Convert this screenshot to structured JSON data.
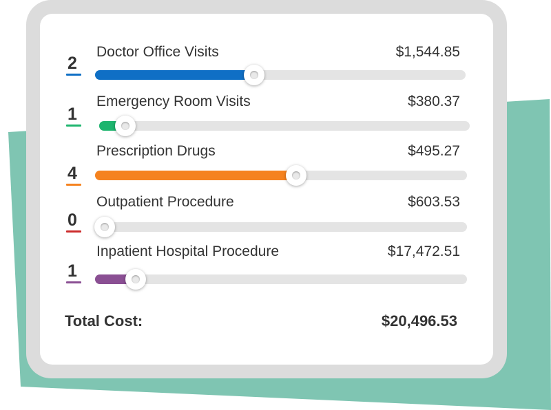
{
  "colors": {
    "background_shape": "#7fc5b2",
    "background_shape_shadow": "#6aa392",
    "frame": "#dcdcdc",
    "card": "#ffffff",
    "track": "#e4e4e4",
    "text": "#333333"
  },
  "items": [
    {
      "count": "2",
      "label": "Doctor Office Visits",
      "amount": "$1,544.85",
      "color": "#0f6fc5",
      "level": 0.43
    },
    {
      "count": "1",
      "label": "Emergency Room Visits",
      "amount": "$380.37",
      "color": "#1db56e",
      "level": 0.07
    },
    {
      "count": "4",
      "label": "Prescription Drugs",
      "amount": "$495.27",
      "color": "#f5821f",
      "level": 0.54
    },
    {
      "count": "0",
      "label": "Outpatient Procedure",
      "amount": "$603.53",
      "color": "#cc2b2b",
      "level": 0.0
    },
    {
      "count": "1",
      "label": "Inpatient Hospital Procedure",
      "amount": "$17,472.51",
      "color": "#8a4f93",
      "level": 0.11
    }
  ],
  "total": {
    "label": "Total Cost:",
    "value": "$20,496.53"
  },
  "thumb_icon": "slider-knob"
}
